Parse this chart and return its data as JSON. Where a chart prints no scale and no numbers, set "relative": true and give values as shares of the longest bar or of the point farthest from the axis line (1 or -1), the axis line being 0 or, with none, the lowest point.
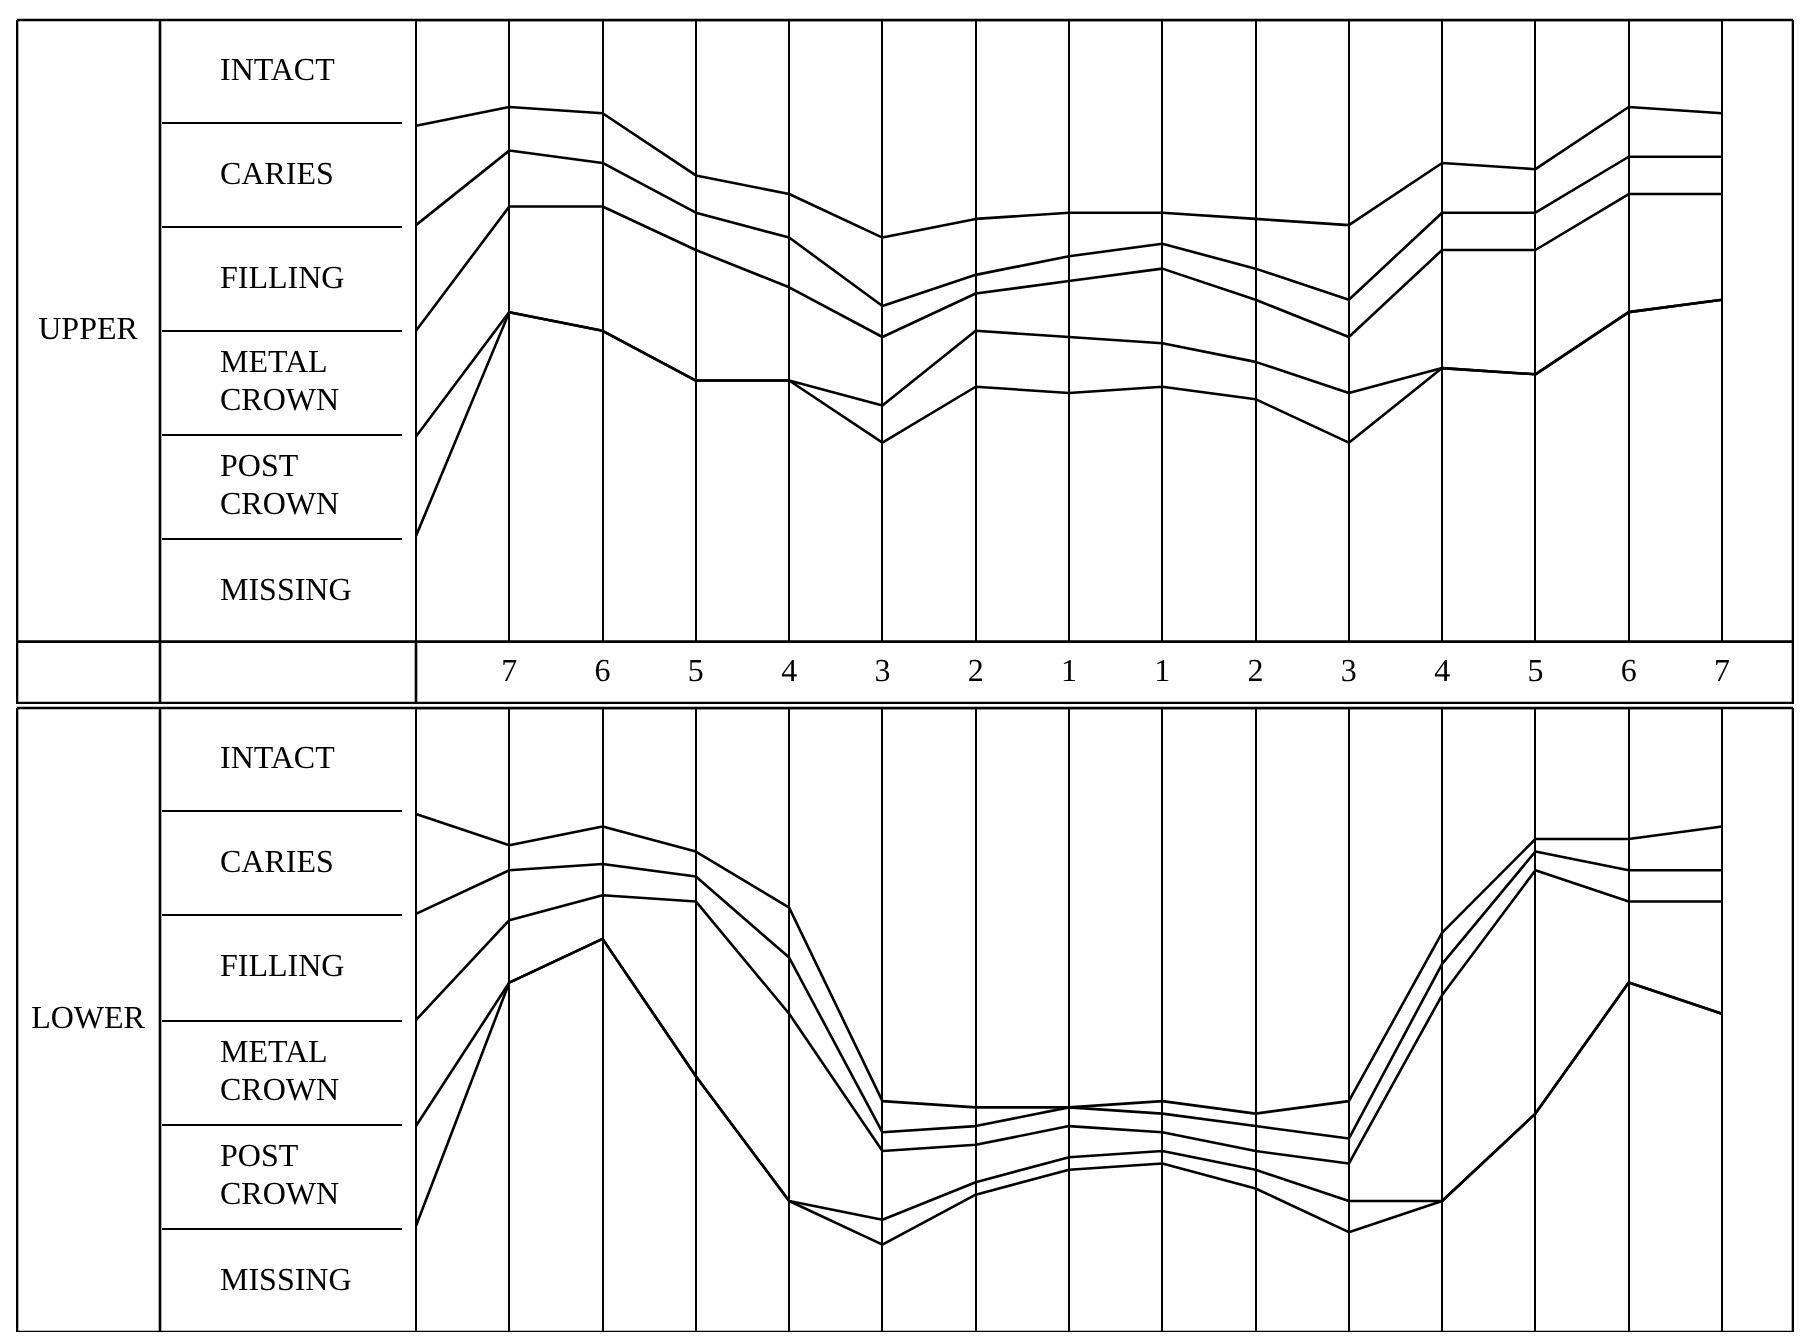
{
  "chart_data": [
    {
      "type": "line",
      "ylabel": "UPPER",
      "relative": true,
      "grid": "x",
      "marker": "none",
      "annotations": [
        "INTACT",
        "CARIES",
        "FILLING",
        "METAL CROWN",
        "POST CROWN",
        "MISSING"
      ],
      "categories": [
        null,
        "7",
        "6",
        "5",
        "4",
        "3",
        "2",
        "1",
        "1",
        "2",
        "3",
        "4",
        "5",
        "6",
        "7"
      ],
      "series": [
        {
          "color": "#000000",
          "values": [
            0.17,
            0.53,
            0.5,
            0.42,
            0.42,
            0.32,
            0.41,
            0.4,
            0.41,
            0.39,
            0.32,
            0.44,
            0.43,
            0.53,
            0.55
          ]
        },
        {
          "color": "#000000",
          "values": [
            0.33,
            0.53,
            0.5,
            0.42,
            0.42,
            0.38,
            0.5,
            0.49,
            0.48,
            0.45,
            0.4,
            0.44,
            0.43,
            0.53,
            0.55
          ]
        },
        {
          "color": "#000000",
          "values": [
            0.5,
            0.7,
            0.7,
            0.63,
            0.57,
            0.49,
            0.56,
            0.58,
            0.6,
            0.55,
            0.49,
            0.63,
            0.63,
            0.72,
            0.72
          ]
        },
        {
          "color": "#000000",
          "values": [
            0.67,
            0.79,
            0.77,
            0.69,
            0.65,
            0.54,
            0.59,
            0.62,
            0.64,
            0.6,
            0.55,
            0.69,
            0.69,
            0.78,
            0.78
          ]
        },
        {
          "color": "#000000",
          "values": [
            0.83,
            0.86,
            0.85,
            0.75,
            0.72,
            0.65,
            0.68,
            0.69,
            0.69,
            0.68,
            0.67,
            0.77,
            0.76,
            0.86,
            0.85
          ]
        },
        {
          "color": "#000000",
          "values": [
            1,
            1,
            1,
            1,
            1,
            1,
            1,
            1,
            1,
            1,
            1,
            1,
            1,
            1,
            1
          ]
        }
      ]
    },
    {
      "type": "line",
      "ylabel": "LOWER",
      "relative": true,
      "grid": "x",
      "marker": "none",
      "tick_labels": false,
      "annotations": [
        "INTACT",
        "CARIES",
        "FILLING",
        "METAL CROWN",
        "POST CROWN",
        "MISSING"
      ],
      "categories": [
        null,
        "7",
        "6",
        "5",
        "4",
        "3",
        "2",
        "1",
        "1",
        "2",
        "3",
        "4",
        "5",
        "6",
        "7"
      ],
      "series": [
        {
          "color": "#000000",
          "values": [
            0.17,
            0.56,
            0.63,
            0.41,
            0.21,
            0.14,
            0.22,
            0.26,
            0.27,
            0.23,
            0.16,
            0.21,
            0.35,
            0.56,
            0.51
          ]
        },
        {
          "color": "#000000",
          "values": [
            0.33,
            0.56,
            0.63,
            0.41,
            0.21,
            0.18,
            0.24,
            0.28,
            0.29,
            0.26,
            0.21,
            0.21,
            0.35,
            0.56,
            0.51
          ]
        },
        {
          "color": "#000000",
          "values": [
            0.5,
            0.66,
            0.7,
            0.69,
            0.51,
            0.29,
            0.3,
            0.33,
            0.32,
            0.29,
            0.27,
            0.54,
            0.74,
            0.69,
            0.69
          ]
        },
        {
          "color": "#000000",
          "values": [
            0.67,
            0.74,
            0.75,
            0.73,
            0.6,
            0.32,
            0.33,
            0.36,
            0.35,
            0.33,
            0.31,
            0.59,
            0.77,
            0.74,
            0.74
          ]
        },
        {
          "color": "#000000",
          "values": [
            0.83,
            0.78,
            0.81,
            0.77,
            0.68,
            0.37,
            0.36,
            0.36,
            0.37,
            0.35,
            0.37,
            0.64,
            0.79,
            0.79,
            0.81
          ]
        },
        {
          "color": "#000000",
          "values": [
            1,
            1,
            1,
            1,
            1,
            1,
            1,
            1,
            1,
            1,
            1,
            1,
            1,
            1,
            1
          ]
        }
      ]
    }
  ]
}
